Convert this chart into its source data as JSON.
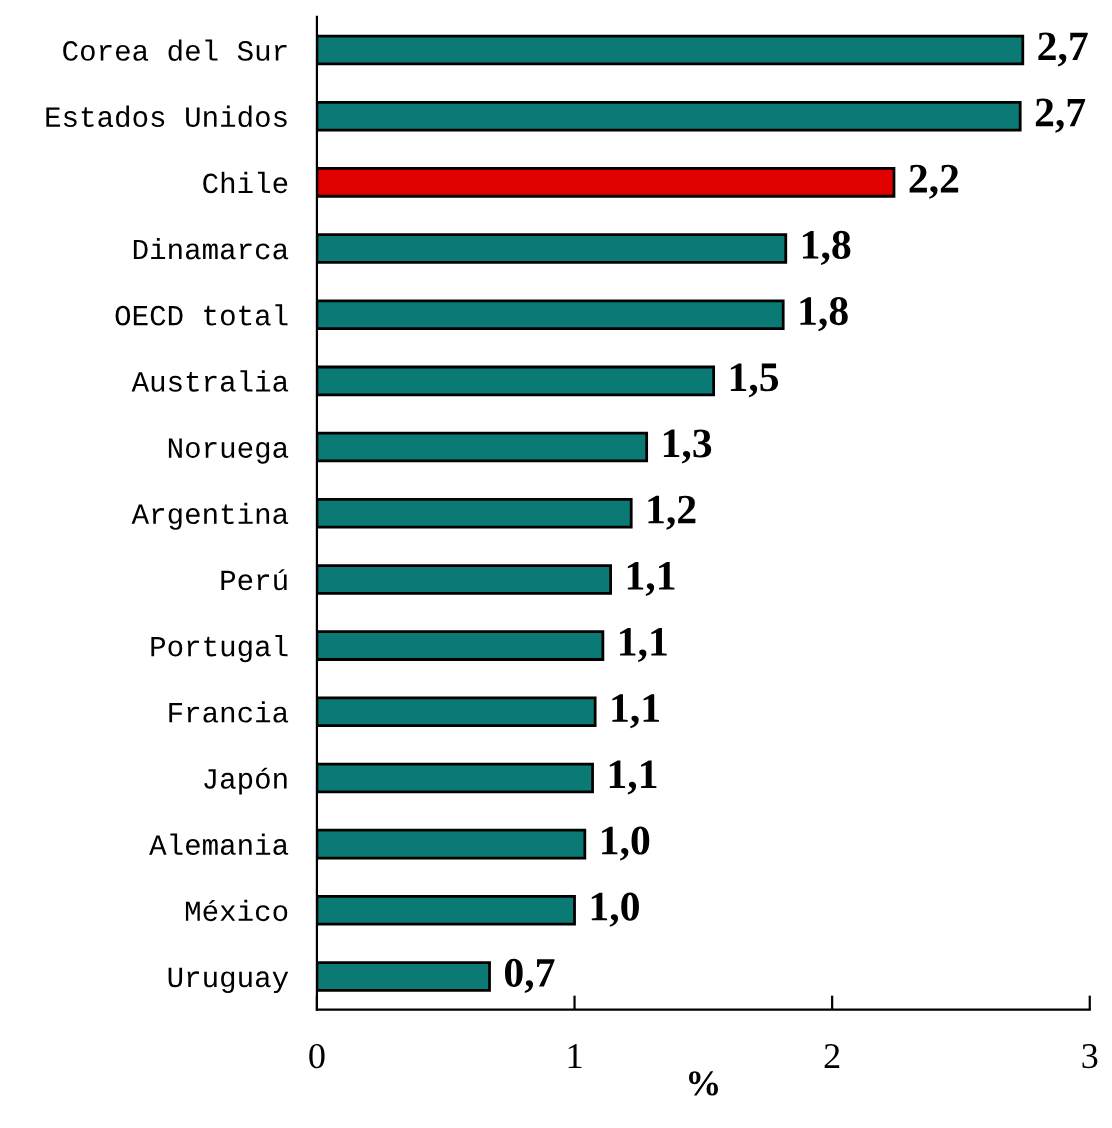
{
  "chart_data": {
    "type": "bar",
    "orientation": "horizontal",
    "xlabel": "%",
    "categories": [
      "Corea del Sur",
      "Estados Unidos",
      "Chile",
      "Dinamarca",
      "OECD total",
      "Australia",
      "Noruega",
      "Argentina",
      "Perú",
      "Portugal",
      "Francia",
      "Japón",
      "Alemania",
      "México",
      "Uruguay"
    ],
    "values": [
      2.74,
      2.73,
      2.24,
      1.82,
      1.81,
      1.54,
      1.28,
      1.22,
      1.14,
      1.11,
      1.08,
      1.07,
      1.04,
      1.0,
      0.67
    ],
    "value_labels": [
      "2,7",
      "2,7",
      "2,2",
      "1,8",
      "1,8",
      "1,5",
      "1,3",
      "1,2",
      "1,1",
      "1,1",
      "1,1",
      "1,1",
      "1,0",
      "1,0",
      "0,7"
    ],
    "colors": [
      "#0b7a74",
      "#0b7a74",
      "#e00000",
      "#0b7a74",
      "#0b7a74",
      "#0b7a74",
      "#0b7a74",
      "#0b7a74",
      "#0b7a74",
      "#0b7a74",
      "#0b7a74",
      "#0b7a74",
      "#0b7a74",
      "#0b7a74",
      "#0b7a74"
    ],
    "xlim": [
      0,
      3
    ],
    "xticks": [
      0,
      1,
      2,
      3
    ],
    "grid": false,
    "legend": false
  }
}
